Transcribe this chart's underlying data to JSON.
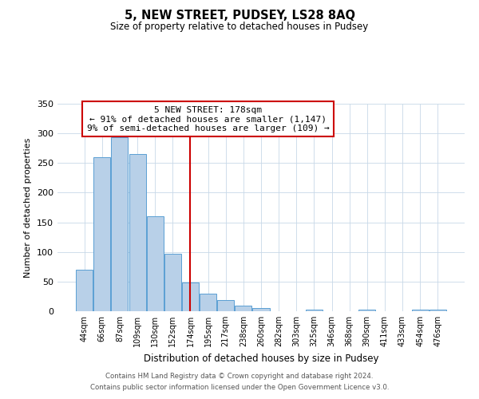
{
  "title": "5, NEW STREET, PUDSEY, LS28 8AQ",
  "subtitle": "Size of property relative to detached houses in Pudsey",
  "xlabel": "Distribution of detached houses by size in Pudsey",
  "ylabel": "Number of detached properties",
  "bar_labels": [
    "44sqm",
    "66sqm",
    "87sqm",
    "109sqm",
    "130sqm",
    "152sqm",
    "174sqm",
    "195sqm",
    "217sqm",
    "238sqm",
    "260sqm",
    "282sqm",
    "303sqm",
    "325sqm",
    "346sqm",
    "368sqm",
    "390sqm",
    "411sqm",
    "433sqm",
    "454sqm",
    "476sqm"
  ],
  "bar_values": [
    70,
    260,
    293,
    265,
    160,
    97,
    48,
    29,
    19,
    10,
    6,
    0,
    0,
    3,
    0,
    0,
    3,
    0,
    0,
    3,
    3
  ],
  "bar_color": "#b8d0e8",
  "bar_edge_color": "#5a9fd4",
  "ylim": [
    0,
    350
  ],
  "yticks": [
    0,
    50,
    100,
    150,
    200,
    250,
    300,
    350
  ],
  "vline_x": 6,
  "vline_color": "#cc0000",
  "annotation_title": "5 NEW STREET: 178sqm",
  "annotation_line1": "← 91% of detached houses are smaller (1,147)",
  "annotation_line2": "9% of semi-detached houses are larger (109) →",
  "annotation_box_color": "#cc0000",
  "footer_line1": "Contains HM Land Registry data © Crown copyright and database right 2024.",
  "footer_line2": "Contains public sector information licensed under the Open Government Licence v3.0.",
  "background_color": "#ffffff",
  "grid_color": "#c8d8e8"
}
